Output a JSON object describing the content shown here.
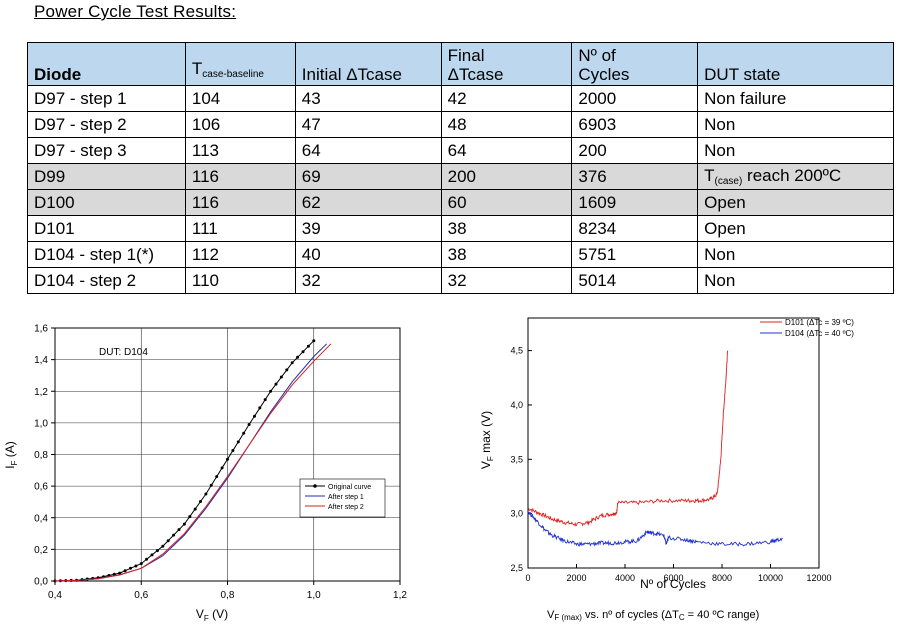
{
  "title": "Power Cycle Test Results:",
  "table": {
    "headers": {
      "diode": "Diode",
      "tcase_main": "T",
      "tcase_sub": "case-baseline",
      "initial_line1": "",
      "initial_line2": "Initial ΔTcase",
      "final_line1": "Final",
      "final_line2": "ΔTcase",
      "cycles_line1": "Nº of",
      "cycles_line2": "Cycles",
      "state": "DUT state"
    },
    "rows": [
      {
        "diode": "D97 - step 1",
        "tcase": "104",
        "initial": "43",
        "final": "42",
        "cycles": "2000",
        "state": "Non failure",
        "shaded": false
      },
      {
        "diode": "D97 - step 2",
        "tcase": "106",
        "initial": "47",
        "final": "48",
        "cycles": "6903",
        "state": "Non",
        "shaded": false
      },
      {
        "diode": "D97 - step 3",
        "tcase": "113",
        "initial": "64",
        "final": "64",
        "cycles": "200",
        "state": "Non",
        "shaded": false
      },
      {
        "diode": "D99",
        "tcase": "116",
        "initial": "69",
        "final": "200",
        "cycles": "376",
        "state_pre": "T",
        "state_sub": "(case)",
        "state_post": " reach 200ºC",
        "shaded": true
      },
      {
        "diode": "D100",
        "tcase": "116",
        "initial": "62",
        "final": "60",
        "cycles": "1609",
        "state": "Open",
        "shaded": true
      },
      {
        "diode": "D101",
        "tcase": "111",
        "initial": "39",
        "final": "38",
        "cycles": "8234",
        "state": "Open",
        "shaded": false
      },
      {
        "diode": "D104 - step 1(*)",
        "tcase": "112",
        "initial": "40",
        "final": "38",
        "cycles": "5751",
        "state": "Non",
        "shaded": false
      },
      {
        "diode": "D104 - step 2",
        "tcase": "110",
        "initial": "32",
        "final": "32",
        "cycles": "5014",
        "state": "Non",
        "shaded": false
      }
    ]
  },
  "chart_data": [
    {
      "type": "line",
      "annotation": "DUT: D104",
      "xlabel_main": "V",
      "xlabel_sub": "F",
      "xlabel_unit": " (V)",
      "ylabel_main": "I",
      "ylabel_sub": "F",
      "ylabel_unit": " (A)",
      "xlim": [
        0.4,
        1.2
      ],
      "ylim": [
        0.0,
        1.6
      ],
      "x_ticks": [
        "0,4",
        "0,6",
        "0,8",
        "1,0",
        "1,2"
      ],
      "y_ticks": [
        "0,0",
        "0,2",
        "0,4",
        "0,6",
        "0,8",
        "1,0",
        "1,2",
        "1,4",
        "1,6"
      ],
      "grid": true,
      "legend_position": "lower-right",
      "series": [
        {
          "name": "Original curve",
          "color": "#000000",
          "markers": true,
          "x": [
            0.4,
            0.45,
            0.5,
            0.55,
            0.6,
            0.65,
            0.7,
            0.75,
            0.8,
            0.85,
            0.9,
            0.95,
            1.0
          ],
          "y": [
            0.0,
            0.005,
            0.02,
            0.05,
            0.11,
            0.22,
            0.36,
            0.55,
            0.77,
            0.99,
            1.2,
            1.38,
            1.52
          ]
        },
        {
          "name": "After step 1",
          "color": "#1f2fb0",
          "markers": false,
          "x": [
            0.4,
            0.45,
            0.5,
            0.55,
            0.6,
            0.65,
            0.7,
            0.75,
            0.8,
            0.85,
            0.9,
            0.95,
            1.0,
            1.03
          ],
          "y": [
            0.0,
            0.004,
            0.015,
            0.04,
            0.08,
            0.16,
            0.29,
            0.46,
            0.65,
            0.86,
            1.07,
            1.26,
            1.42,
            1.5
          ]
        },
        {
          "name": "After step 2",
          "color": "#d42020",
          "markers": false,
          "x": [
            0.4,
            0.45,
            0.5,
            0.55,
            0.6,
            0.65,
            0.7,
            0.75,
            0.8,
            0.85,
            0.9,
            0.95,
            1.0,
            1.04
          ],
          "y": [
            0.0,
            0.004,
            0.014,
            0.038,
            0.08,
            0.17,
            0.3,
            0.47,
            0.66,
            0.86,
            1.06,
            1.24,
            1.39,
            1.5
          ]
        }
      ]
    },
    {
      "type": "line",
      "xlabel": "Nº of Cycles",
      "ylabel_main": "V",
      "ylabel_sub": "F",
      "ylabel_unit": " max (V)",
      "xlim": [
        0,
        12000
      ],
      "ylim": [
        2.5,
        4.8
      ],
      "x_ticks": [
        "0",
        "2000",
        "4000",
        "6000",
        "8000",
        "10000",
        "12000"
      ],
      "y_ticks": [
        "2,5",
        "3,0",
        "3,5",
        "4,0",
        "4,5"
      ],
      "grid": false,
      "legend_position": "top-right",
      "caption_pre": "V",
      "caption_sub": "F (max)",
      "caption_mid": " vs. nº of cycles (ΔT",
      "caption_sub2": "C",
      "caption_post": " = 40 ºC range)",
      "series": [
        {
          "name": "D101 (ΔTc = 39 ºC)",
          "color": "#e02020",
          "x": [
            0,
            500,
            1000,
            1500,
            2000,
            2500,
            3000,
            3500,
            3650,
            3700,
            4500,
            5500,
            6500,
            7000,
            7500,
            7800,
            7950,
            8050,
            8150,
            8234
          ],
          "y": [
            3.05,
            3.0,
            2.95,
            2.92,
            2.9,
            2.92,
            2.98,
            3.0,
            3.0,
            3.1,
            3.1,
            3.12,
            3.12,
            3.12,
            3.13,
            3.18,
            3.5,
            3.9,
            4.2,
            4.5
          ]
        },
        {
          "name": "D104 (ΔTc = 40 ºC)",
          "color": "#2030d0",
          "x": [
            0,
            300,
            700,
            1000,
            1500,
            2000,
            2500,
            3000,
            3500,
            4000,
            4500,
            4900,
            5200,
            5600,
            5700,
            5800,
            6500,
            7000,
            8000,
            9000,
            10000,
            10500
          ],
          "y": [
            3.02,
            2.95,
            2.85,
            2.8,
            2.75,
            2.72,
            2.72,
            2.73,
            2.73,
            2.74,
            2.75,
            2.83,
            2.82,
            2.8,
            2.72,
            2.78,
            2.76,
            2.74,
            2.72,
            2.72,
            2.74,
            2.77
          ]
        }
      ]
    }
  ]
}
